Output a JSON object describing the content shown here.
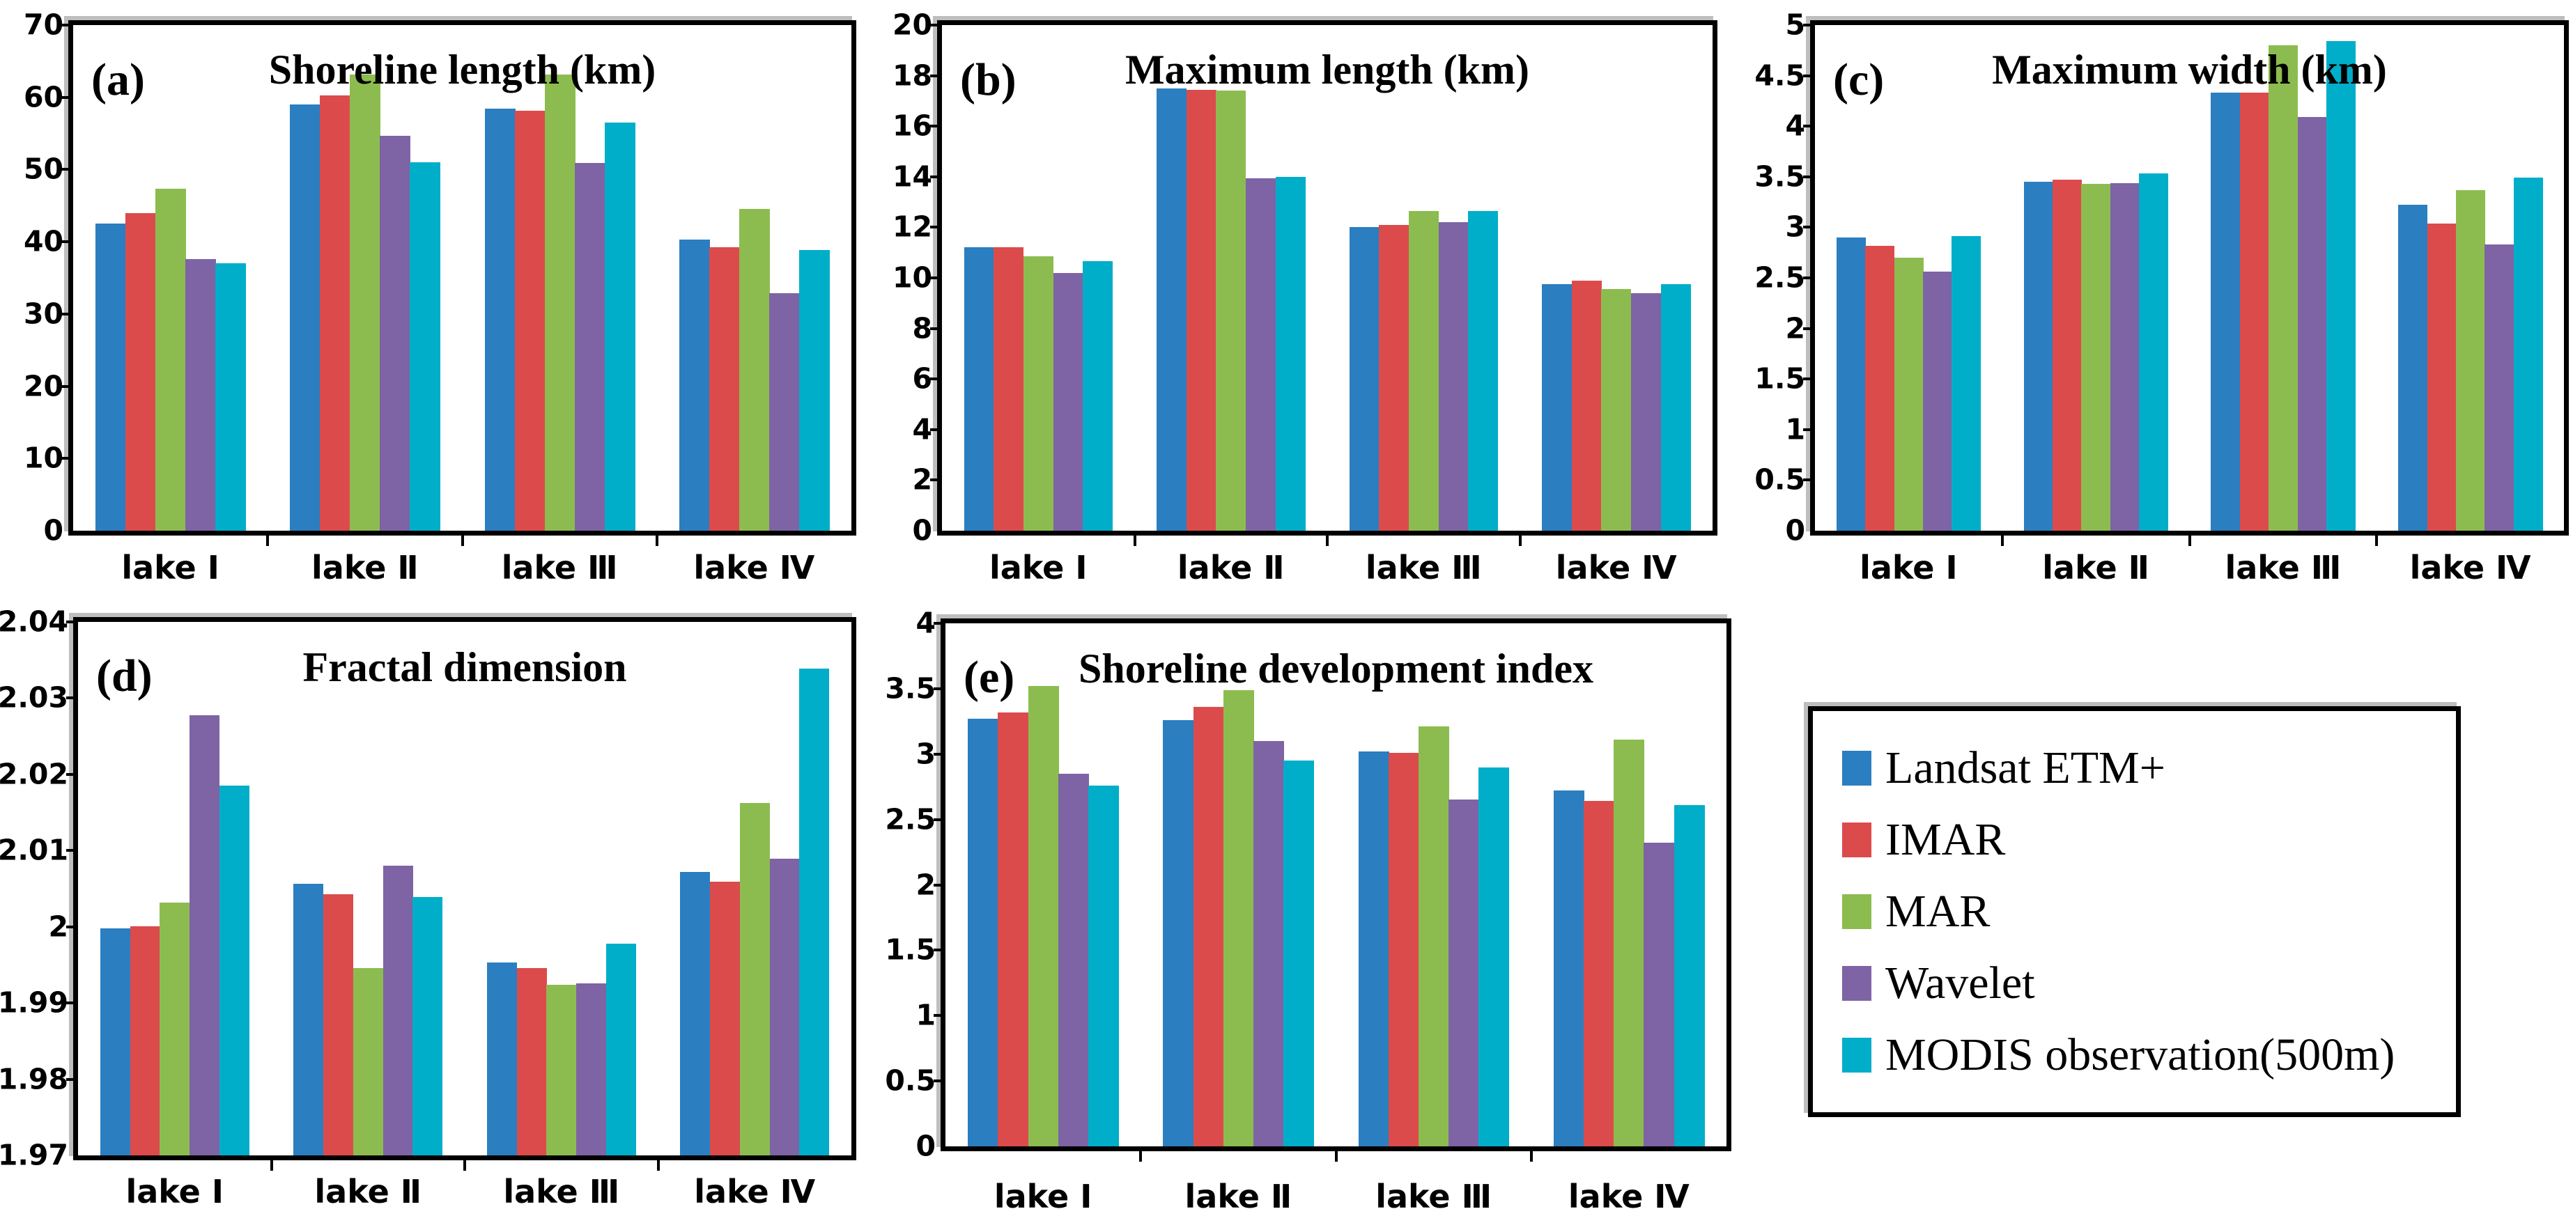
{
  "legend": {
    "items": [
      {
        "label": "Landsat ETM+",
        "color": "#2B7EC0"
      },
      {
        "label": "IMAR",
        "color": "#DC4B4B"
      },
      {
        "label": "MAR",
        "color": "#8CBC4F"
      },
      {
        "label": "Wavelet",
        "color": "#7E63A5"
      },
      {
        "label": "MODIS observation(500m)",
        "color": "#00AEC9"
      }
    ]
  },
  "chart_data": [
    {
      "type": "bar",
      "panel_label": "(a)",
      "title": "Shoreline length (km)",
      "categories": [
        "lake Ⅰ",
        "lake Ⅱ",
        "lake Ⅲ",
        "lake Ⅳ"
      ],
      "series": [
        {
          "name": "Landsat ETM+",
          "values": [
            42.5,
            59.0,
            58.4,
            40.3
          ]
        },
        {
          "name": "IMAR",
          "values": [
            44.0,
            60.3,
            58.1,
            39.2
          ]
        },
        {
          "name": "MAR",
          "values": [
            47.3,
            63.2,
            63.2,
            44.5
          ]
        },
        {
          "name": "Wavelet",
          "values": [
            37.6,
            54.7,
            50.9,
            32.9
          ]
        },
        {
          "name": "MODIS observation(500m)",
          "values": [
            37.0,
            51.0,
            56.5,
            38.9
          ]
        }
      ],
      "ylim": [
        0,
        70
      ],
      "ytick_step": 10,
      "ytick_labels": [
        "0",
        "10",
        "20",
        "30",
        "40",
        "50",
        "60",
        "70"
      ],
      "xlabel": "",
      "ylabel": "",
      "grid": false,
      "legend_position": "shared-external"
    },
    {
      "type": "bar",
      "panel_label": "(b)",
      "title": "Maximum length (km)",
      "categories": [
        "lake Ⅰ",
        "lake Ⅱ",
        "lake Ⅲ",
        "lake Ⅳ"
      ],
      "series": [
        {
          "name": "Landsat ETM+",
          "values": [
            11.2,
            17.5,
            12.0,
            9.75
          ]
        },
        {
          "name": "IMAR",
          "values": [
            11.2,
            17.45,
            12.1,
            9.9
          ]
        },
        {
          "name": "MAR",
          "values": [
            10.85,
            17.4,
            12.65,
            9.55
          ]
        },
        {
          "name": "Wavelet",
          "values": [
            10.2,
            13.95,
            12.2,
            9.4
          ]
        },
        {
          "name": "MODIS observation(500m)",
          "values": [
            10.65,
            14.0,
            12.65,
            9.75
          ]
        }
      ],
      "ylim": [
        0,
        20
      ],
      "ytick_step": 2,
      "ytick_labels": [
        "0",
        "2",
        "4",
        "6",
        "8",
        "10",
        "12",
        "14",
        "16",
        "18",
        "20"
      ],
      "xlabel": "",
      "ylabel": "",
      "grid": false,
      "legend_position": "shared-external"
    },
    {
      "type": "bar",
      "panel_label": "(c)",
      "title": "Maximum width (km)",
      "categories": [
        "lake Ⅰ",
        "lake Ⅱ",
        "lake Ⅲ",
        "lake Ⅳ"
      ],
      "series": [
        {
          "name": "Landsat ETM+",
          "values": [
            2.9,
            3.45,
            4.33,
            3.22
          ]
        },
        {
          "name": "IMAR",
          "values": [
            2.82,
            3.47,
            4.33,
            3.04
          ]
        },
        {
          "name": "MAR",
          "values": [
            2.7,
            3.43,
            4.8,
            3.37
          ]
        },
        {
          "name": "Wavelet",
          "values": [
            2.56,
            3.44,
            4.09,
            2.83
          ]
        },
        {
          "name": "MODIS observation(500m)",
          "values": [
            2.91,
            3.53,
            4.84,
            3.49
          ]
        }
      ],
      "ylim": [
        0,
        5
      ],
      "ytick_step": 0.5,
      "ytick_labels": [
        "0",
        "0.5",
        "1",
        "1.5",
        "2",
        "2.5",
        "3",
        "3.5",
        "4",
        "4.5",
        "5"
      ],
      "xlabel": "",
      "ylabel": "",
      "grid": false,
      "legend_position": "shared-external"
    },
    {
      "type": "bar",
      "panel_label": "(d)",
      "title": "Fractal dimension",
      "categories": [
        "lake Ⅰ",
        "lake Ⅱ",
        "lake Ⅲ",
        "lake Ⅳ"
      ],
      "series": [
        {
          "name": "Landsat ETM+",
          "values": [
            1.9998,
            2.0056,
            1.9953,
            2.0072
          ]
        },
        {
          "name": "IMAR",
          "values": [
            2.0001,
            2.0043,
            1.9946,
            2.0059
          ]
        },
        {
          "name": "MAR",
          "values": [
            2.0032,
            1.9946,
            1.9924,
            2.0162
          ]
        },
        {
          "name": "Wavelet",
          "values": [
            2.0278,
            2.008,
            1.9926,
            2.0089
          ]
        },
        {
          "name": "MODIS observation(500m)",
          "values": [
            2.0185,
            2.0039,
            1.9978,
            2.0339
          ]
        }
      ],
      "ylim": [
        1.97,
        2.04
      ],
      "ytick_step": 0.01,
      "ytick_labels": [
        "1.97",
        "1.98",
        "1.99",
        "2",
        "2.01",
        "2.02",
        "2.03",
        "2.04"
      ],
      "xlabel": "",
      "ylabel": "",
      "grid": false,
      "legend_position": "shared-external"
    },
    {
      "type": "bar",
      "panel_label": "(e)",
      "title": "Shoreline development index",
      "categories": [
        "lake Ⅰ",
        "lake Ⅱ",
        "lake Ⅲ",
        "lake Ⅳ"
      ],
      "series": [
        {
          "name": "Landsat ETM+",
          "values": [
            3.27,
            3.26,
            3.02,
            2.72
          ]
        },
        {
          "name": "IMAR",
          "values": [
            3.32,
            3.36,
            3.01,
            2.64
          ]
        },
        {
          "name": "MAR",
          "values": [
            3.52,
            3.49,
            3.21,
            3.11
          ]
        },
        {
          "name": "Wavelet",
          "values": [
            2.85,
            3.1,
            2.65,
            2.32
          ]
        },
        {
          "name": "MODIS observation(500m)",
          "values": [
            2.76,
            2.95,
            2.9,
            2.61
          ]
        }
      ],
      "ylim": [
        0,
        4
      ],
      "ytick_step": 0.5,
      "ytick_labels": [
        "0",
        "0.5",
        "1",
        "1.5",
        "2",
        "2.5",
        "3",
        "3.5",
        "4"
      ],
      "xlabel": "",
      "ylabel": "",
      "grid": false,
      "legend_position": "shared-external"
    }
  ]
}
